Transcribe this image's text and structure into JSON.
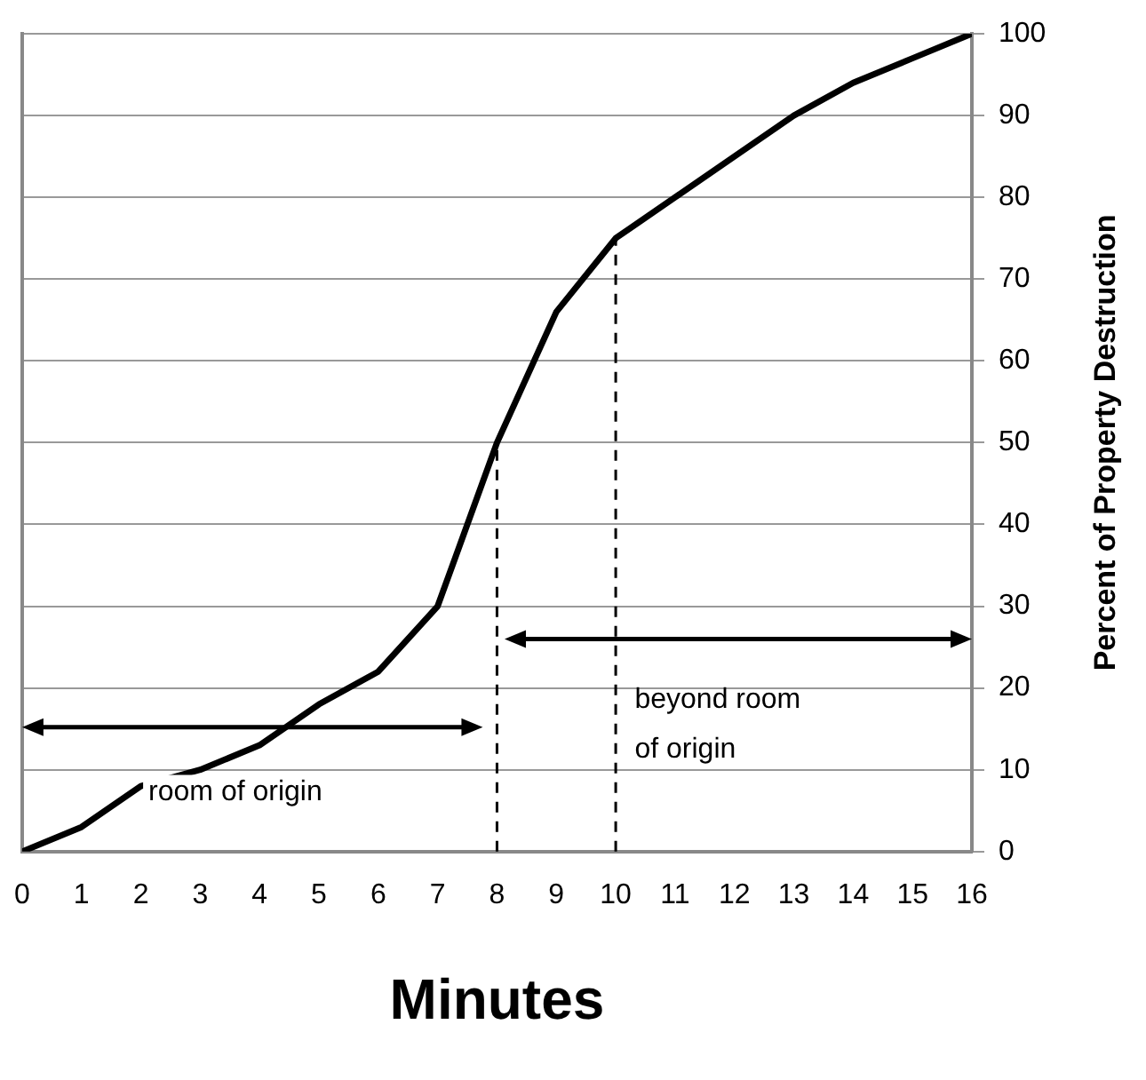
{
  "chart_data": {
    "type": "line",
    "xlabel": "Minutes",
    "ylabel": "Percent of Property Destruction",
    "x": [
      0,
      1,
      2,
      3,
      4,
      5,
      6,
      7,
      8,
      9,
      10,
      11,
      12,
      13,
      14,
      15,
      16
    ],
    "series": [
      {
        "color": "#000000",
        "values": [
          0,
          3,
          8,
          10,
          13,
          18,
          22,
          30,
          50,
          66,
          75,
          80,
          85,
          90,
          94,
          97,
          100
        ]
      }
    ],
    "xlim": [
      0,
      16
    ],
    "xticks": [
      0,
      1,
      2,
      3,
      4,
      5,
      6,
      7,
      8,
      9,
      10,
      11,
      12,
      13,
      14,
      15,
      16
    ],
    "ylim": [
      0,
      100
    ],
    "yticks": [
      0,
      10,
      20,
      30,
      40,
      50,
      60,
      70,
      80,
      90,
      100
    ],
    "grid": "y",
    "legend": false,
    "marker": "none",
    "line_style": "solid",
    "ref_lines": [
      {
        "axis": "x",
        "value": 8,
        "line_style": "dashed",
        "color": "#000000"
      },
      {
        "axis": "x",
        "value": 10,
        "line_style": "dashed",
        "color": "#000000"
      }
    ],
    "annotations": [
      "room of origin",
      "beyond room of origin"
    ]
  }
}
